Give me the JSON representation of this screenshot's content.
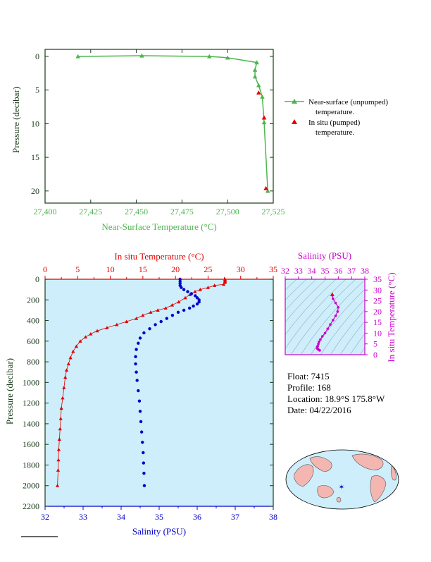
{
  "colors": {
    "green": "#4cb64c",
    "red": "#e00000",
    "blue": "#0000cc",
    "magenta": "#cc00cc",
    "ocean": "#cdeefa",
    "land": "#f4b6b0",
    "axis_dark": "#1a3a1a"
  },
  "top_chart": {
    "xlabel": "Near-Surface Temperature (°C)",
    "ylabel": "Pressure (decibar)",
    "x_ticks": [
      "27,400",
      "27,425",
      "27,450",
      "27,475",
      "27,500",
      "27,525"
    ],
    "y_ticks": [
      "0",
      "5",
      "10",
      "15",
      "20"
    ],
    "legend": {
      "line1_a": "Near-surface (unpumped)",
      "line1_b": "temperature.",
      "line2_a": "In situ (pumped)",
      "line2_b": "temperature."
    }
  },
  "bottom_chart": {
    "top_xlabel": "In situ Temperature (°C)",
    "bottom_xlabel": "Salinity (PSU)",
    "ylabel": "Pressure (decibar)",
    "temp_ticks": [
      "0",
      "5",
      "10",
      "15",
      "20",
      "25",
      "30",
      "35"
    ],
    "sal_ticks": [
      "32",
      "33",
      "34",
      "35",
      "36",
      "37",
      "38"
    ],
    "pres_ticks": [
      "0",
      "200",
      "400",
      "600",
      "800",
      "1000",
      "1200",
      "1400",
      "1600",
      "1800",
      "2000",
      "2200"
    ]
  },
  "ts_chart": {
    "top_label": "Salinity (PSU)",
    "right_label": "In situ Temperature (°C)",
    "sal_ticks": [
      "32",
      "33",
      "34",
      "35",
      "36",
      "37",
      "38"
    ],
    "temp_ticks": [
      "0",
      "5",
      "10",
      "15",
      "20",
      "25",
      "30",
      "35"
    ]
  },
  "info": {
    "float": "Float:  7415",
    "profile": "Profile:  168",
    "location": "Location:  18.9°S   175.8°W",
    "date": "Date:  04/22/2016"
  },
  "chart_data": [
    {
      "type": "line",
      "series": [
        {
          "name": "Near-surface (unpumped) temperature.",
          "points": [
            [
              27.418,
              0.0
            ],
            [
              27.453,
              -0.1
            ],
            [
              27.49,
              0.0
            ],
            [
              27.5,
              0.2
            ],
            [
              27.516,
              0.9
            ],
            [
              27.515,
              2.0
            ],
            [
              27.515,
              3.0
            ],
            [
              27.517,
              4.3
            ],
            [
              27.519,
              6.0
            ],
            [
              27.52,
              9.8
            ],
            [
              27.522,
              20.0
            ]
          ]
        },
        {
          "name": "In situ (pumped) temperature.",
          "points": [
            [
              27.517,
              5.4
            ],
            [
              27.52,
              9.1
            ],
            [
              27.521,
              19.6
            ]
          ]
        }
      ],
      "xlim": [
        27.4,
        27.525
      ],
      "ylim": [
        0,
        21.8
      ]
    },
    {
      "type": "line",
      "series": [
        {
          "name": "In situ Temperature (°C)",
          "points": [
            [
              27.6,
              0
            ],
            [
              27.6,
              10
            ],
            [
              27.6,
              20
            ],
            [
              27.6,
              30
            ],
            [
              27.4,
              50
            ],
            [
              26.0,
              60
            ],
            [
              25.0,
              80
            ],
            [
              23.8,
              100
            ],
            [
              23.0,
              120
            ],
            [
              22.2,
              150
            ],
            [
              21.5,
              180
            ],
            [
              20.5,
              220
            ],
            [
              19.5,
              250
            ],
            [
              18.5,
              280
            ],
            [
              17.3,
              300
            ],
            [
              16.2,
              320
            ],
            [
              15.0,
              350
            ],
            [
              14.0,
              380
            ],
            [
              12.5,
              410
            ],
            [
              11.0,
              440
            ],
            [
              9.5,
              470
            ],
            [
              8.0,
              500
            ],
            [
              7.0,
              530
            ],
            [
              6.2,
              560
            ],
            [
              5.4,
              600
            ],
            [
              4.8,
              650
            ],
            [
              4.3,
              700
            ],
            [
              3.9,
              760
            ],
            [
              3.6,
              820
            ],
            [
              3.3,
              880
            ],
            [
              3.1,
              950
            ],
            [
              2.9,
              1050
            ],
            [
              2.7,
              1150
            ],
            [
              2.5,
              1250
            ],
            [
              2.4,
              1350
            ],
            [
              2.3,
              1450
            ],
            [
              2.2,
              1550
            ],
            [
              2.1,
              1650
            ],
            [
              2.05,
              1750
            ],
            [
              2.0,
              1850
            ],
            [
              1.9,
              2000
            ]
          ]
        },
        {
          "name": "Salinity (PSU)",
          "points": [
            [
              35.55,
              0
            ],
            [
              35.55,
              20
            ],
            [
              35.55,
              40
            ],
            [
              35.55,
              60
            ],
            [
              35.58,
              80
            ],
            [
              35.65,
              100
            ],
            [
              35.75,
              120
            ],
            [
              35.85,
              140
            ],
            [
              35.95,
              160
            ],
            [
              36.0,
              180
            ],
            [
              36.05,
              200
            ],
            [
              36.05,
              220
            ],
            [
              36.0,
              240
            ],
            [
              35.9,
              260
            ],
            [
              35.8,
              280
            ],
            [
              35.65,
              300
            ],
            [
              35.5,
              320
            ],
            [
              35.35,
              350
            ],
            [
              35.2,
              380
            ],
            [
              35.05,
              410
            ],
            [
              34.9,
              440
            ],
            [
              34.75,
              480
            ],
            [
              34.6,
              520
            ],
            [
              34.5,
              570
            ],
            [
              34.45,
              620
            ],
            [
              34.4,
              680
            ],
            [
              34.38,
              750
            ],
            [
              34.38,
              820
            ],
            [
              34.4,
              900
            ],
            [
              34.42,
              980
            ],
            [
              34.45,
              1080
            ],
            [
              34.48,
              1180
            ],
            [
              34.5,
              1280
            ],
            [
              34.52,
              1380
            ],
            [
              34.54,
              1480
            ],
            [
              34.56,
              1580
            ],
            [
              34.58,
              1680
            ],
            [
              34.59,
              1780
            ],
            [
              34.6,
              1880
            ],
            [
              34.61,
              2000
            ]
          ]
        }
      ],
      "xlim_salinity": [
        32,
        38
      ],
      "xlim_temperature": [
        0,
        35
      ],
      "ylim": [
        0,
        2200
      ]
    },
    {
      "type": "scatter",
      "series": [
        {
          "name": "T-S",
          "points": [
            [
              35.55,
              27.6
            ],
            [
              35.6,
              26
            ],
            [
              35.8,
              24
            ],
            [
              36.0,
              22
            ],
            [
              35.95,
              20
            ],
            [
              35.8,
              18
            ],
            [
              35.6,
              16
            ],
            [
              35.4,
              14
            ],
            [
              35.2,
              12
            ],
            [
              35.0,
              10
            ],
            [
              34.8,
              8.5
            ],
            [
              34.65,
              7
            ],
            [
              34.55,
              6
            ],
            [
              34.5,
              5
            ],
            [
              34.45,
              4
            ],
            [
              34.42,
              3.5
            ],
            [
              34.4,
              3
            ],
            [
              34.45,
              2.6
            ],
            [
              34.5,
              2.4
            ],
            [
              34.55,
              2.2
            ],
            [
              34.6,
              2.0
            ]
          ]
        }
      ],
      "xlim": [
        32,
        38
      ],
      "ylim": [
        0,
        35
      ]
    }
  ]
}
